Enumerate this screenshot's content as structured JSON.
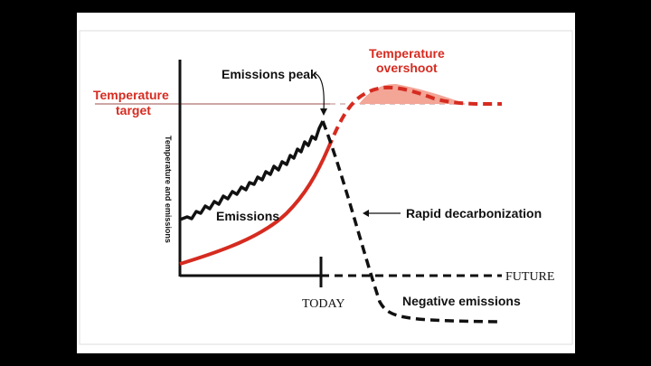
{
  "labels": {
    "temperature_target": [
      "Temperature",
      "target"
    ],
    "temperature_overshoot": [
      "Temperature",
      "overshoot"
    ],
    "emissions_peak": "Emissions peak",
    "emissions": "Emissions",
    "rapid_decarbonization": "Rapid decarbonization",
    "negative_emissions": "Negative emissions",
    "today": "TODAY",
    "future": "FUTURE",
    "y_axis": "Temperature and emissions"
  },
  "colors": {
    "temperature": "#d62b20",
    "emissions": "#111111",
    "overshoot_fill": "#f3a596",
    "target_line": "#b07070"
  }
}
